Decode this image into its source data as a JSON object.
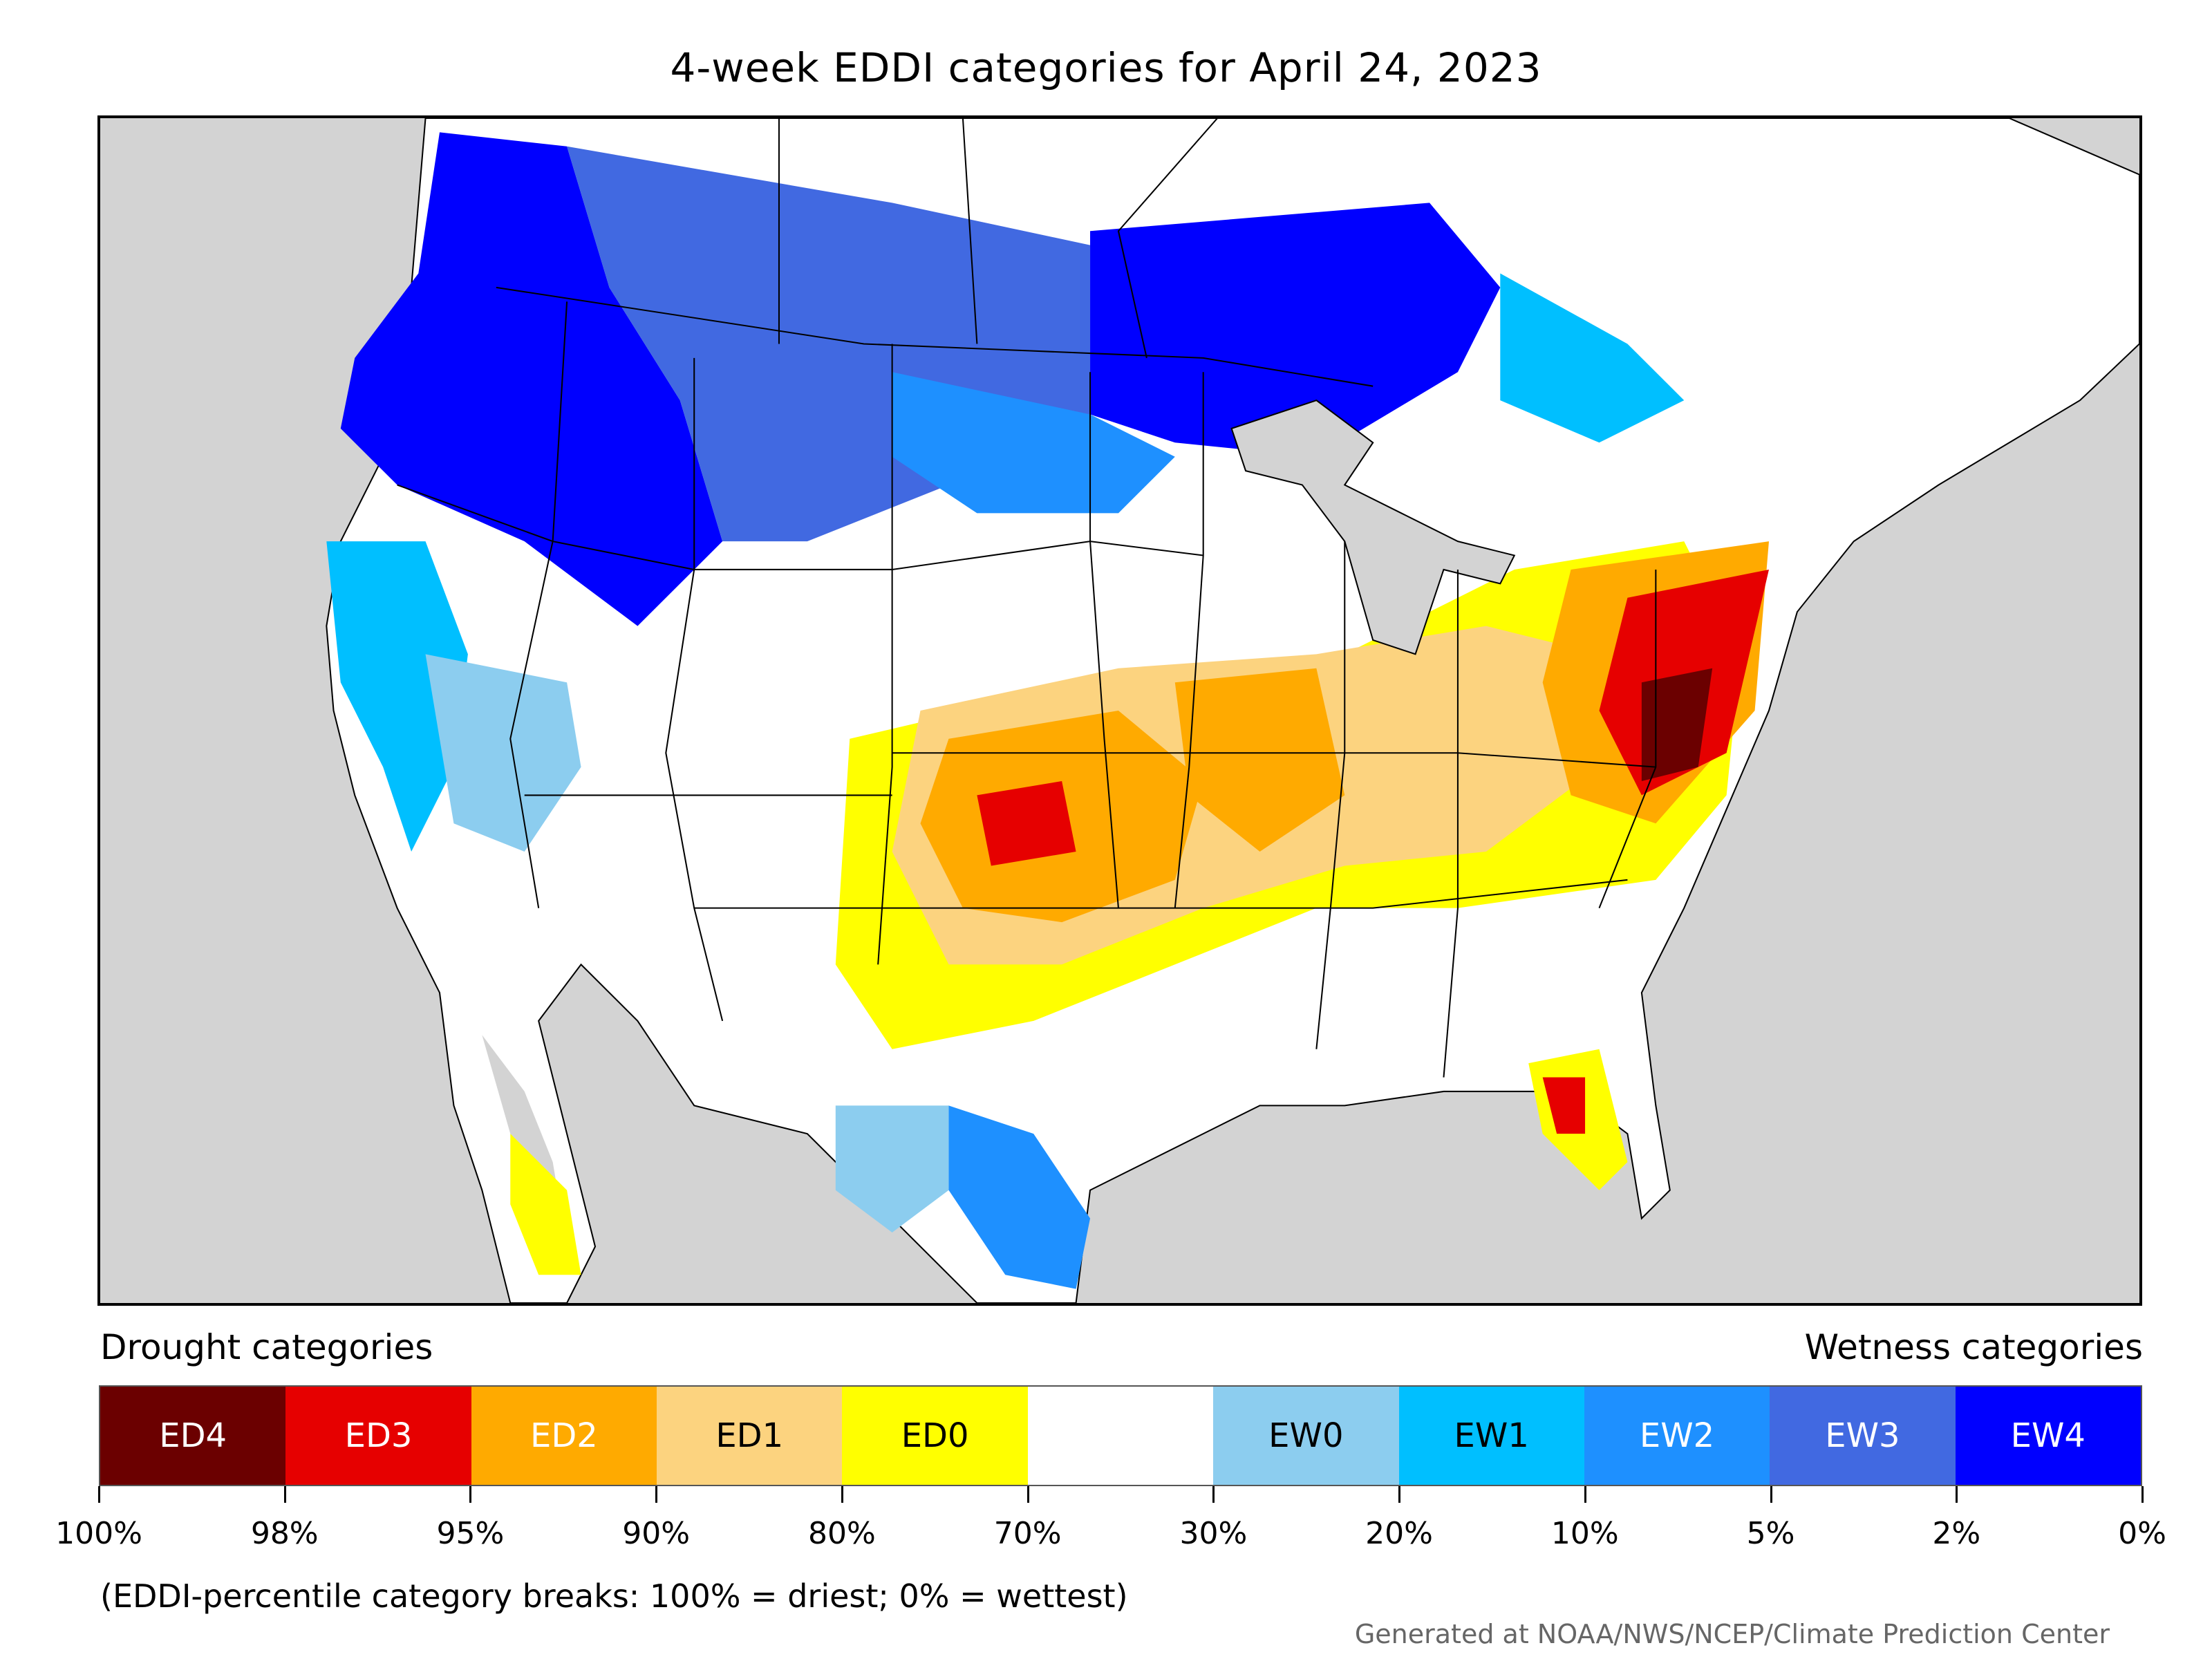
{
  "title": "4-week EDDI categories for April 24, 2023",
  "legend": {
    "drought_heading": "Drought categories",
    "wetness_heading": "Wetness categories",
    "categories": [
      {
        "label": "ED4",
        "color": "#6b0000",
        "text_color": "#ffffff"
      },
      {
        "label": "ED3",
        "color": "#e60000",
        "text_color": "#ffffff"
      },
      {
        "label": "ED2",
        "color": "#ffaa00",
        "text_color": "#ffffff"
      },
      {
        "label": "ED1",
        "color": "#fcd37f",
        "text_color": "#000000"
      },
      {
        "label": "ED0",
        "color": "#ffff00",
        "text_color": "#000000"
      },
      {
        "label": "",
        "color": "#ffffff",
        "text_color": "#000000"
      },
      {
        "label": "EW0",
        "color": "#8ccdef",
        "text_color": "#000000"
      },
      {
        "label": "EW1",
        "color": "#00bfff",
        "text_color": "#000000"
      },
      {
        "label": "EW2",
        "color": "#1e90ff",
        "text_color": "#ffffff"
      },
      {
        "label": "EW3",
        "color": "#4169e1",
        "text_color": "#ffffff"
      },
      {
        "label": "EW4",
        "color": "#0000ff",
        "text_color": "#ffffff"
      }
    ],
    "breaks": [
      "100%",
      "98%",
      "95%",
      "90%",
      "80%",
      "70%",
      "30%",
      "20%",
      "10%",
      "5%",
      "2%",
      "0%"
    ]
  },
  "note": "(EDDI-percentile category breaks: 100% = driest; 0% = wettest)",
  "credit": "Generated at NOAA/NWS/NCEP/Climate Prediction Center",
  "colors": {
    "ocean": "#d3d3d3",
    "land": "#ffffff",
    "border": "#000000"
  }
}
